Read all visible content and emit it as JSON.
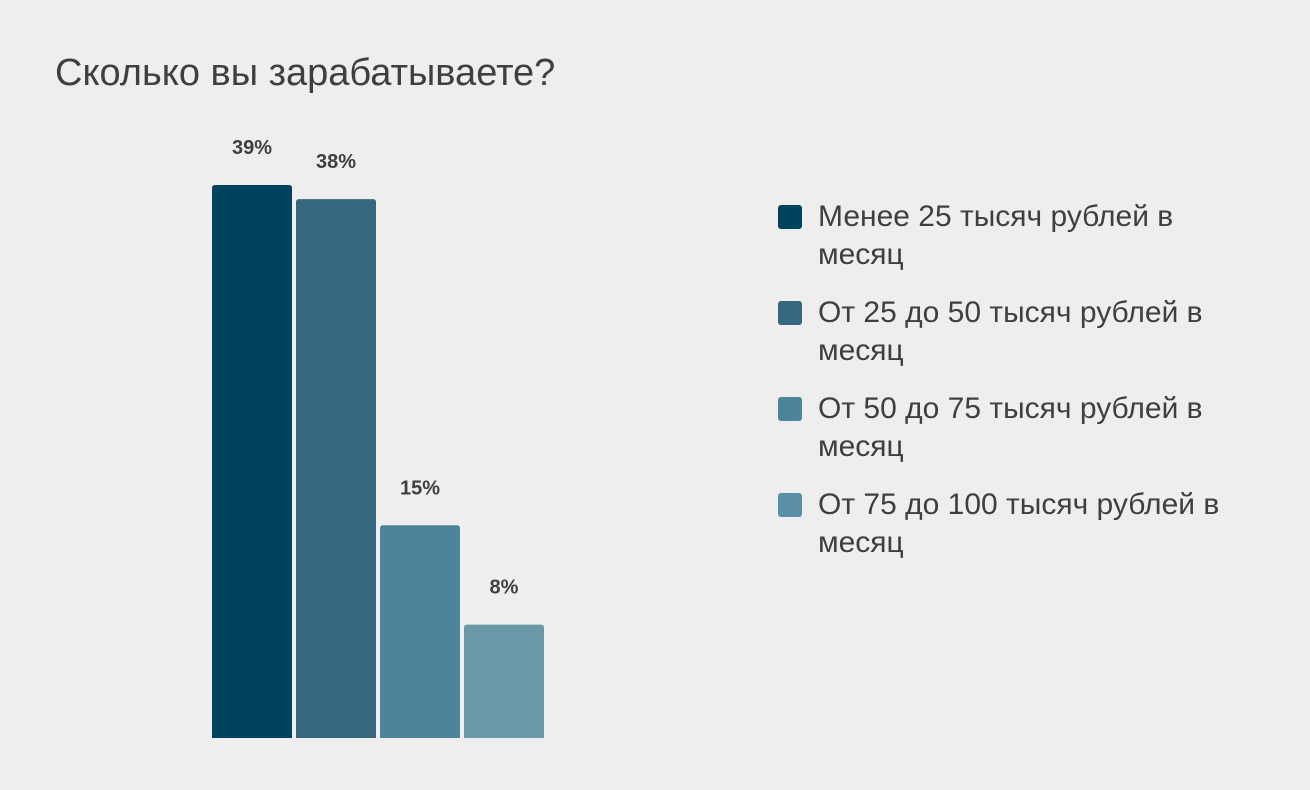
{
  "title": "Сколько вы зарабатываете?",
  "chart_data": {
    "type": "bar",
    "title": "Сколько вы зарабатываете?",
    "categories": [
      "Менее 25 тысяч рублей в месяц",
      "От 25 до 50 тысяч рублей в месяц",
      "От 50 до 75 тысяч рублей в месяц",
      "От 75 до 100 тысяч рублей в месяц"
    ],
    "values": [
      39,
      38,
      15,
      8
    ],
    "value_labels": [
      "39%",
      "38%",
      "15%",
      "8%"
    ],
    "colors": [
      "#00435f",
      "#37677f",
      "#4d8499",
      "#6999a6"
    ],
    "ylim": [
      0,
      39
    ],
    "grid": false,
    "legend_position": "right"
  },
  "legend": {
    "items": [
      {
        "label": "Менее 25 тысяч рублей в месяц",
        "color": "#00435f"
      },
      {
        "label": "От 25 до 50 тысяч рублей в месяц",
        "color": "#37677f"
      },
      {
        "label": "От 50 до 75 тысяч рублей в месяц",
        "color": "#4d8499"
      },
      {
        "label": "От 75 до 100 тысяч рублей в месяц",
        "color": "#5c8ea8"
      }
    ]
  }
}
